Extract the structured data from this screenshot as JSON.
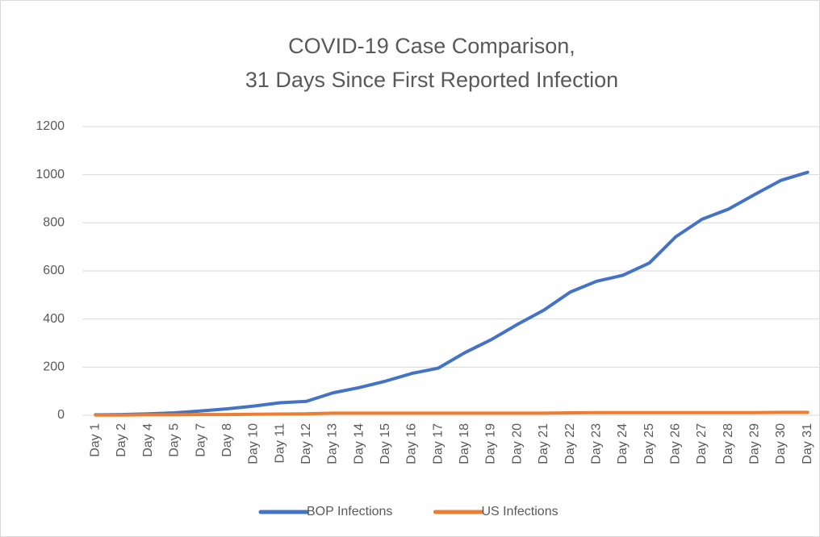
{
  "chart_data": {
    "type": "line",
    "title": [
      "COVID-19 Case Comparison,",
      "31 Days Since First Reported Infection"
    ],
    "categories": [
      "Day 1",
      "Day 2",
      "Day 4",
      "Day 5",
      "Day 7",
      "Day 8",
      "Day 10",
      "Day 11",
      "Day 12",
      "Day 13",
      "Day 14",
      "Day 15",
      "Day 16",
      "Day 17",
      "Day 18",
      "Day 19",
      "Day 20",
      "Day 21",
      "Day 22",
      "Day 23",
      "Day 24",
      "Day 25",
      "Day 26",
      "Day 27",
      "Day 28",
      "Day 29",
      "Day 30",
      "Day 31"
    ],
    "series": [
      {
        "name": "BOP Infections",
        "color": "#4472c4",
        "values": [
          2,
          3,
          6,
          10,
          18,
          27,
          38,
          52,
          58,
          93,
          115,
          142,
          174,
          196,
          260,
          314,
          378,
          437,
          512,
          557,
          582,
          633,
          742,
          815,
          857,
          918,
          977,
          1010
        ]
      },
      {
        "name": "US Infections",
        "color": "#ed7d31",
        "values": [
          1,
          1,
          2,
          2,
          3,
          3,
          4,
          5,
          6,
          9,
          9,
          9,
          9,
          9,
          9,
          9,
          9,
          9,
          10,
          11,
          11,
          11,
          11,
          11,
          11,
          11,
          12,
          12
        ]
      }
    ],
    "ylim": [
      0,
      1200
    ],
    "yticks": [
      0,
      200,
      400,
      600,
      800,
      1000,
      1200
    ],
    "grid": true,
    "legend": "bottom"
  }
}
